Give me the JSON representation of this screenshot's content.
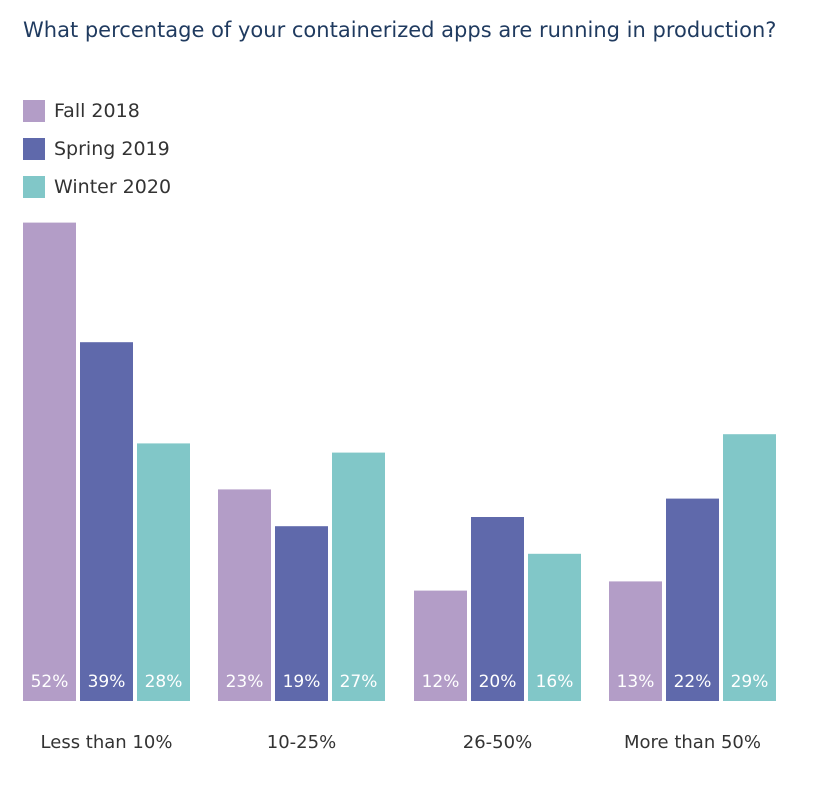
{
  "chart_data": {
    "type": "bar",
    "title": "What percentage of your containerized apps are running in production?",
    "categories": [
      "Less than 10%",
      "10-25%",
      "26-50%",
      "More than 50%"
    ],
    "series": [
      {
        "name": "Fall 2018",
        "color": "#b39dc7",
        "values": [
          52,
          23,
          12,
          13
        ],
        "labels": [
          "52%",
          "23%",
          "12%",
          "13%"
        ]
      },
      {
        "name": "Spring 2019",
        "color": "#5f69ab",
        "values": [
          39,
          19,
          20,
          22
        ],
        "labels": [
          "39%",
          "19%",
          "20%",
          "22%"
        ]
      },
      {
        "name": "Winter 2020",
        "color": "#81c7c8",
        "values": [
          28,
          27,
          16,
          29
        ],
        "labels": [
          "28%",
          "27%",
          "16%",
          "29%"
        ]
      }
    ],
    "legend_position": "top-left",
    "xlabel": "",
    "ylabel": "",
    "grid": false
  }
}
